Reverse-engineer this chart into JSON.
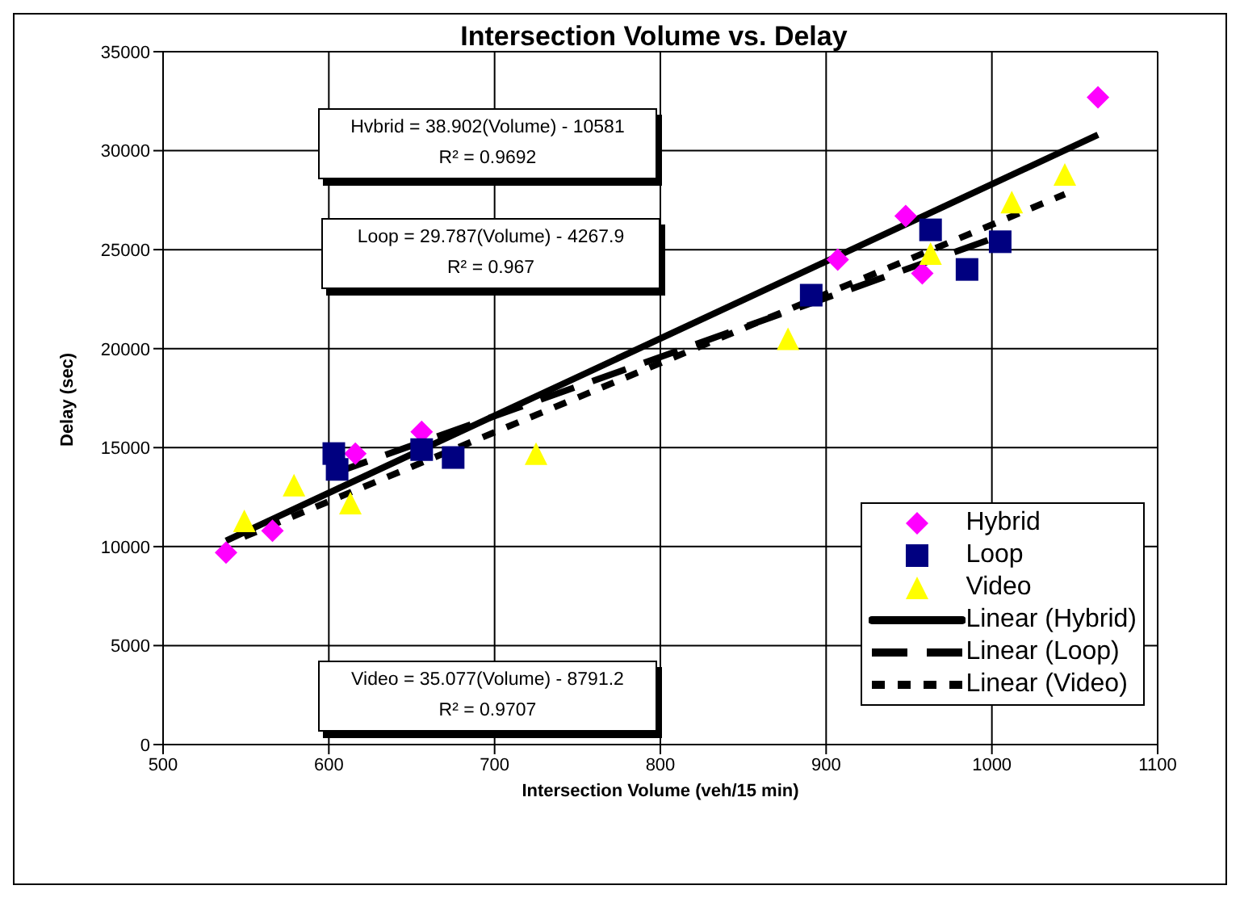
{
  "chart_data": {
    "type": "scatter",
    "title": "Intersection Volume vs. Delay",
    "xlabel": "Intersection Volume (veh/15 min)",
    "ylabel": "Delay (sec)",
    "xlim": [
      500,
      1100
    ],
    "xticks": [
      500,
      600,
      700,
      800,
      900,
      1000,
      1100
    ],
    "ylim": [
      0,
      35000
    ],
    "yticks": [
      0,
      5000,
      10000,
      15000,
      20000,
      25000,
      30000,
      35000
    ],
    "grid": true,
    "legend": "bottom right",
    "annotations": [
      "Hvbrid = 38.902(Volume) - 10581\nR² = 0.9692",
      "Loop = 29.787(Volume) - 4267.9\nR² = 0.967",
      "Video = 35.077(Volume) - 8791.2\nR² = 0.9707"
    ],
    "series": [
      {
        "name": "Hybrid",
        "marker": "diamond",
        "color": "#ff00ff",
        "x": [
          538,
          566,
          616,
          656,
          907,
          948,
          958,
          1064
        ],
        "values": [
          9700,
          10800,
          14700,
          15800,
          24500,
          26700,
          23800,
          32700
        ]
      },
      {
        "name": "Loop",
        "marker": "square",
        "color": "#000080",
        "x": [
          603,
          605,
          656,
          675,
          891,
          963,
          985,
          1005
        ],
        "values": [
          14700,
          13900,
          14900,
          14500,
          22700,
          26000,
          24000,
          25400
        ]
      },
      {
        "name": "Video",
        "marker": "triangle",
        "color": "#ffff00",
        "x": [
          549,
          579,
          613,
          725,
          877,
          963,
          1012,
          1044
        ],
        "values": [
          11300,
          13100,
          12200,
          14700,
          20500,
          24800,
          27400,
          28800
        ]
      },
      {
        "name": "Linear (Hybrid)",
        "type": "line",
        "line_style": "solid",
        "color": "#000000",
        "x": [
          538,
          1064
        ],
        "values": [
          10300,
          30800
        ]
      },
      {
        "name": "Linear (Loop)",
        "type": "line",
        "line_style": "dashed",
        "color": "#000000",
        "x": [
          603,
          1005
        ],
        "values": [
          13700,
          25700
        ]
      },
      {
        "name": "Linear (Video)",
        "type": "line",
        "line_style": "dotted",
        "color": "#000000",
        "x": [
          549,
          1044
        ],
        "values": [
          10500,
          27800
        ]
      }
    ]
  }
}
